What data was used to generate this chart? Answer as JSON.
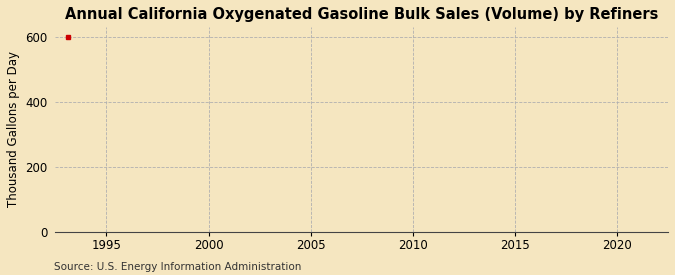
{
  "title": "Annual California Oxygenated Gasoline Bulk Sales (Volume) by Refiners",
  "ylabel": "Thousand Gallons per Day",
  "xlabel": "",
  "background_color": "#f5e6c0",
  "plot_background_color": "#f5e6c0",
  "xlim": [
    1992.5,
    2022.5
  ],
  "ylim": [
    0,
    630
  ],
  "yticks": [
    0,
    200,
    400,
    600
  ],
  "xticks": [
    1995,
    2000,
    2005,
    2010,
    2015,
    2020
  ],
  "grid_color": "#b0b0b0",
  "source_text": "Source: U.S. Energy Information Administration",
  "data_point_x": 1993.1,
  "data_point_y": 600,
  "data_point_color": "#cc0000",
  "title_fontsize": 10.5,
  "label_fontsize": 8.5,
  "tick_fontsize": 8.5,
  "source_fontsize": 7.5
}
